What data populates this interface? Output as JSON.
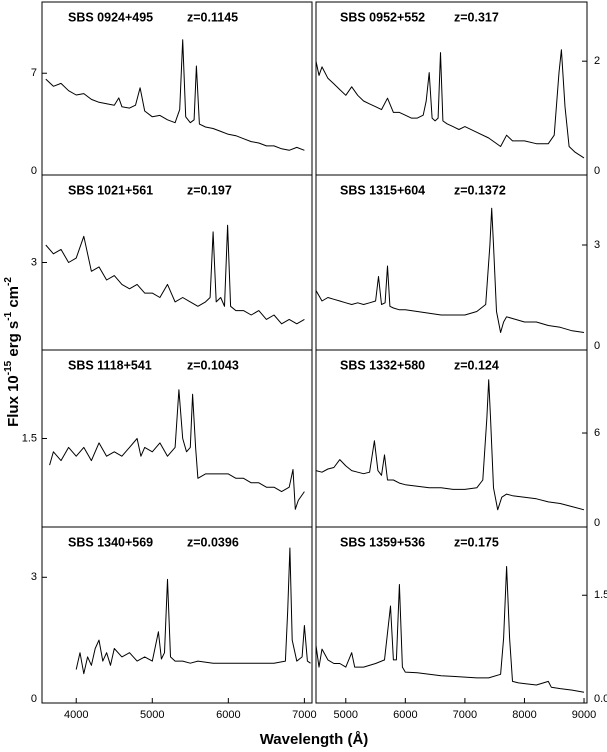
{
  "chart_data": [
    {
      "type": "line",
      "title": "SBS 0924+495",
      "annotation": "z=0.1145",
      "xlim": [
        3550,
        7100
      ],
      "ylim": [
        0,
        11.9
      ],
      "yticks": [
        0,
        7
      ],
      "x": [
        3600,
        3700,
        3800,
        3900,
        4000,
        4100,
        4200,
        4300,
        4400,
        4500,
        4560,
        4600,
        4700,
        4780,
        4840,
        4900,
        5000,
        5100,
        5200,
        5300,
        5360,
        5400,
        5440,
        5500,
        5550,
        5580,
        5620,
        5700,
        5800,
        5900,
        6000,
        6100,
        6200,
        6300,
        6400,
        6500,
        6600,
        6700,
        6800,
        6900,
        7000
      ],
      "values": [
        6.6,
        6.1,
        6.3,
        5.8,
        5.5,
        5.6,
        5.2,
        5.0,
        4.9,
        4.8,
        5.3,
        4.7,
        4.6,
        4.8,
        6.0,
        4.4,
        4.0,
        4.1,
        3.8,
        3.6,
        4.5,
        9.3,
        4.0,
        3.6,
        3.8,
        7.5,
        3.5,
        3.3,
        3.2,
        3.0,
        2.8,
        2.7,
        2.5,
        2.3,
        2.2,
        2.0,
        2.0,
        1.8,
        1.7,
        1.9,
        1.7
      ]
    },
    {
      "type": "line",
      "title": "SBS 0952+552",
      "annotation": "z=0.317",
      "xlim": [
        4500,
        9050
      ],
      "ylim": [
        0,
        3.04
      ],
      "yticks": [
        0,
        2
      ],
      "x": [
        4500,
        4550,
        4600,
        4700,
        4800,
        4900,
        5000,
        5100,
        5200,
        5300,
        5400,
        5500,
        5600,
        5700,
        5800,
        5900,
        6000,
        6100,
        6200,
        6300,
        6350,
        6400,
        6450,
        6500,
        6550,
        6590,
        6630,
        6700,
        6800,
        6900,
        7000,
        7200,
        7400,
        7600,
        7700,
        7800,
        8000,
        8200,
        8400,
        8500,
        8580,
        8620,
        8680,
        8750,
        8850,
        9000
      ],
      "values": [
        2.0,
        1.75,
        1.9,
        1.7,
        1.6,
        1.5,
        1.4,
        1.55,
        1.4,
        1.3,
        1.25,
        1.2,
        1.15,
        1.35,
        1.1,
        1.1,
        1.05,
        1.0,
        1.0,
        1.05,
        1.3,
        1.8,
        1.0,
        0.95,
        1.0,
        2.15,
        0.95,
        0.9,
        0.85,
        0.8,
        0.85,
        0.75,
        0.65,
        0.5,
        0.7,
        0.6,
        0.6,
        0.55,
        0.55,
        0.7,
        1.8,
        2.2,
        1.2,
        0.5,
        0.4,
        0.3
      ]
    },
    {
      "type": "line",
      "title": "SBS 1021+561",
      "annotation": "z=0.197",
      "xlim": [
        3550,
        7100
      ],
      "ylim": [
        1,
        5
      ],
      "yticks": [
        3
      ],
      "x": [
        3600,
        3700,
        3800,
        3900,
        4000,
        4100,
        4200,
        4300,
        4400,
        4500,
        4600,
        4700,
        4800,
        4900,
        5000,
        5100,
        5200,
        5300,
        5400,
        5500,
        5600,
        5700,
        5760,
        5800,
        5840,
        5900,
        5950,
        5990,
        6030,
        6100,
        6200,
        6300,
        6400,
        6500,
        6600,
        6700,
        6800,
        6900,
        7000
      ],
      "values": [
        3.4,
        3.2,
        3.3,
        3.0,
        3.1,
        3.6,
        2.8,
        2.9,
        2.6,
        2.7,
        2.5,
        2.4,
        2.5,
        2.3,
        2.3,
        2.2,
        2.5,
        2.1,
        2.2,
        2.1,
        2.0,
        2.1,
        2.2,
        3.7,
        2.1,
        2.2,
        2.0,
        3.85,
        2.0,
        1.9,
        1.9,
        1.8,
        1.9,
        1.7,
        1.8,
        1.6,
        1.7,
        1.6,
        1.7
      ]
    },
    {
      "type": "line",
      "title": "SBS 1315+604",
      "annotation": "z=0.1372",
      "xlim": [
        4500,
        9050
      ],
      "ylim": [
        0,
        5
      ],
      "yticks": [
        0,
        3
      ],
      "x": [
        4500,
        4600,
        4700,
        4800,
        4900,
        5000,
        5100,
        5200,
        5300,
        5400,
        5500,
        5550,
        5600,
        5660,
        5700,
        5740,
        5800,
        5900,
        6000,
        6200,
        6400,
        6600,
        6800,
        7000,
        7200,
        7350,
        7420,
        7450,
        7480,
        7530,
        7600,
        7650,
        7700,
        7800,
        8000,
        8200,
        8400,
        8600,
        8800,
        9000
      ],
      "values": [
        1.7,
        1.4,
        1.5,
        1.45,
        1.4,
        1.35,
        1.3,
        1.35,
        1.3,
        1.35,
        1.4,
        2.1,
        1.3,
        1.35,
        2.4,
        1.25,
        1.2,
        1.15,
        1.15,
        1.1,
        1.05,
        1.0,
        1.0,
        1.0,
        1.1,
        1.3,
        3.0,
        4.05,
        3.0,
        1.1,
        0.5,
        0.8,
        0.95,
        0.9,
        0.8,
        0.8,
        0.7,
        0.65,
        0.55,
        0.5
      ]
    },
    {
      "type": "line",
      "title": "SBS 1118+541",
      "annotation": "z=0.1043",
      "xlim": [
        3550,
        7100
      ],
      "ylim": [
        0.5,
        2.5
      ],
      "yticks": [
        1.5
      ],
      "x": [
        3650,
        3700,
        3800,
        3900,
        4000,
        4100,
        4200,
        4300,
        4400,
        4500,
        4600,
        4700,
        4800,
        4850,
        4900,
        5000,
        5100,
        5200,
        5300,
        5350,
        5400,
        5450,
        5500,
        5530,
        5570,
        5600,
        5700,
        5800,
        5900,
        6000,
        6100,
        6200,
        6300,
        6400,
        6500,
        6600,
        6700,
        6800,
        6850,
        6880,
        6920,
        7000
      ],
      "values": [
        1.2,
        1.35,
        1.25,
        1.4,
        1.3,
        1.4,
        1.25,
        1.45,
        1.3,
        1.35,
        1.3,
        1.4,
        1.5,
        1.3,
        1.4,
        1.35,
        1.45,
        1.3,
        1.4,
        2.05,
        1.5,
        1.35,
        1.4,
        2.0,
        1.4,
        1.05,
        1.1,
        1.1,
        1.1,
        1.1,
        1.05,
        1.05,
        1.0,
        1.0,
        0.95,
        0.95,
        0.9,
        0.95,
        1.15,
        0.7,
        0.8,
        0.9
      ]
    },
    {
      "type": "line",
      "title": "SBS 1332+580",
      "annotation": "z=0.124",
      "xlim": [
        4500,
        9050
      ],
      "ylim": [
        0,
        11.3
      ],
      "yticks": [
        0,
        6
      ],
      "x": [
        4500,
        4600,
        4700,
        4800,
        4900,
        5000,
        5100,
        5200,
        5300,
        5400,
        5480,
        5540,
        5600,
        5650,
        5700,
        5800,
        5900,
        6000,
        6200,
        6400,
        6600,
        6800,
        7000,
        7200,
        7300,
        7370,
        7400,
        7430,
        7480,
        7550,
        7620,
        7700,
        7800,
        8000,
        8200,
        8400,
        8600,
        8800,
        9000
      ],
      "values": [
        3.6,
        3.5,
        3.7,
        3.8,
        4.3,
        3.9,
        3.6,
        3.5,
        3.4,
        3.5,
        5.5,
        3.6,
        3.3,
        4.6,
        3.0,
        3.0,
        2.8,
        2.7,
        2.6,
        2.5,
        2.5,
        2.4,
        2.4,
        2.5,
        3.0,
        7.0,
        9.4,
        7.0,
        2.5,
        1.1,
        1.9,
        2.1,
        2.0,
        1.9,
        1.8,
        1.6,
        1.5,
        1.3,
        1.1
      ]
    },
    {
      "type": "line",
      "title": "SBS 1340+569",
      "annotation": "z=0.0396",
      "xlim": [
        3550,
        7100
      ],
      "ylim": [
        0,
        4.2
      ],
      "yticks": [
        0,
        3
      ],
      "xticks": [
        4000,
        5000,
        6000,
        7000
      ],
      "x": [
        4000,
        4050,
        4100,
        4150,
        4200,
        4250,
        4300,
        4350,
        4400,
        4450,
        4500,
        4600,
        4700,
        4800,
        4900,
        5000,
        5080,
        5120,
        5160,
        5200,
        5240,
        5300,
        5400,
        5500,
        5600,
        5800,
        6000,
        6200,
        6400,
        6600,
        6750,
        6780,
        6810,
        6840,
        6900,
        6970,
        7000,
        7040,
        7080
      ],
      "values": [
        0.8,
        1.2,
        0.7,
        1.1,
        0.9,
        1.3,
        1.5,
        1.0,
        1.2,
        0.9,
        1.3,
        1.1,
        1.2,
        1.0,
        1.1,
        1.0,
        1.7,
        1.05,
        1.2,
        2.95,
        1.1,
        1.0,
        1.0,
        0.95,
        1.0,
        0.95,
        0.95,
        0.95,
        0.95,
        0.95,
        1.0,
        2.2,
        3.7,
        1.5,
        1.0,
        1.1,
        1.85,
        1.0,
        0.95
      ]
    },
    {
      "type": "line",
      "title": "SBS 1359+536",
      "annotation": "z=0.175",
      "xlim": [
        4500,
        9050
      ],
      "ylim": [
        0,
        2.45
      ],
      "yticks": [
        {
          "value": 0,
          "label": "0.0"
        },
        1.5
      ],
      "xticks": [
        5000,
        6000,
        7000,
        8000,
        9000
      ],
      "x": [
        4500,
        4550,
        4600,
        4700,
        4800,
        4900,
        5000,
        5100,
        5150,
        5300,
        5500,
        5650,
        5750,
        5800,
        5850,
        5900,
        5950,
        6000,
        6200,
        6400,
        6600,
        6800,
        7000,
        7200,
        7400,
        7600,
        7650,
        7700,
        7750,
        7800,
        7900,
        8000,
        8200,
        8400,
        8450,
        8600,
        8800,
        9000
      ],
      "values": [
        0.8,
        0.5,
        0.75,
        0.6,
        0.55,
        0.55,
        0.5,
        0.7,
        0.5,
        0.5,
        0.55,
        0.6,
        1.35,
        0.6,
        0.6,
        1.65,
        0.5,
        0.43,
        0.42,
        0.4,
        0.38,
        0.37,
        0.36,
        0.35,
        0.35,
        0.4,
        0.9,
        1.9,
        0.9,
        0.3,
        0.28,
        0.27,
        0.25,
        0.3,
        0.22,
        0.2,
        0.18,
        0.15
      ]
    }
  ],
  "xlabel": "Wavelength  (Å)",
  "ylabel": [
    "Flux 10",
    "-15",
    " erg s",
    "-1",
    " cm",
    "-2"
  ]
}
